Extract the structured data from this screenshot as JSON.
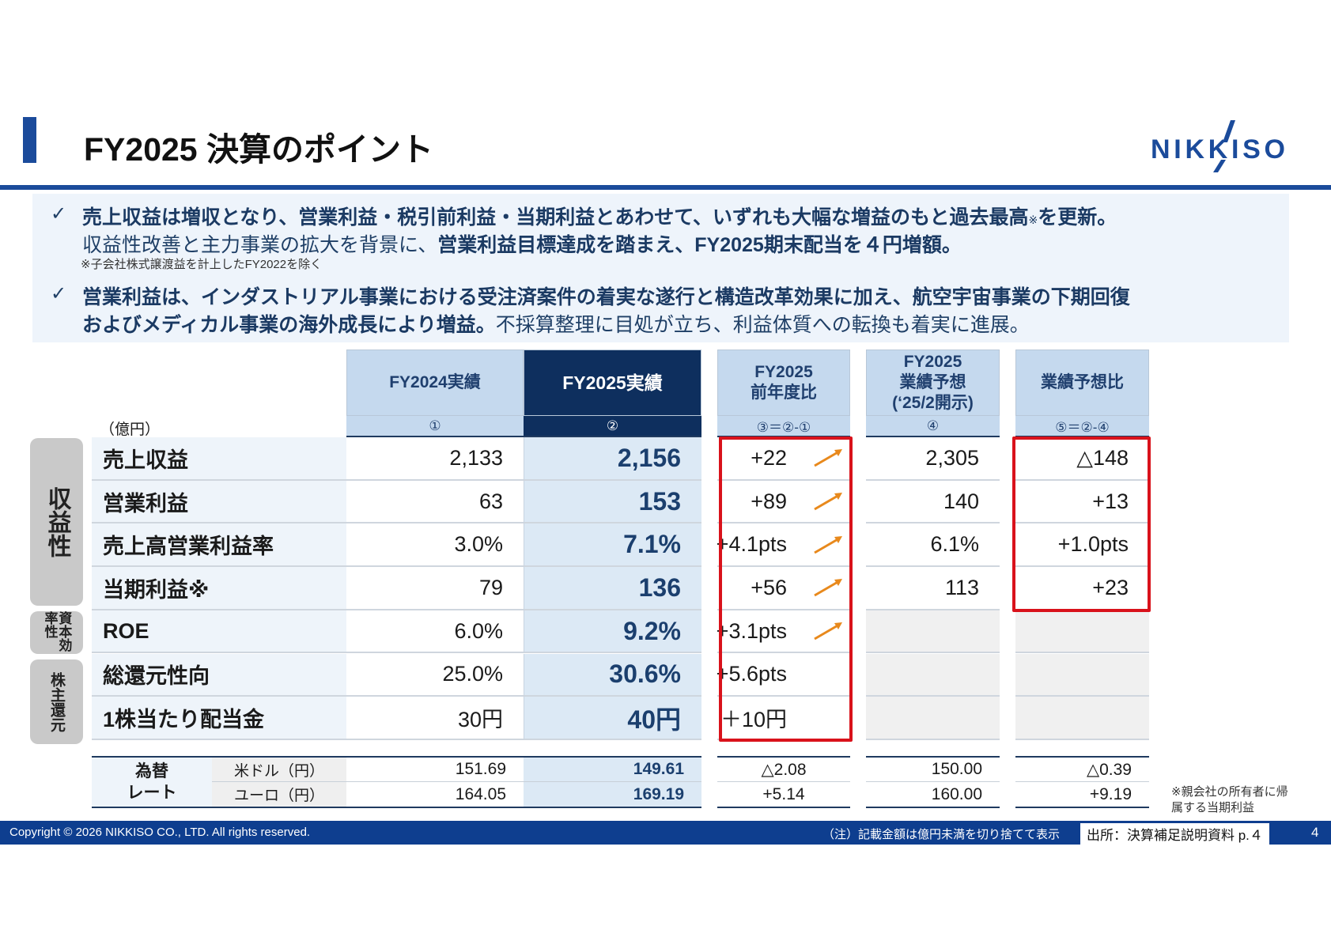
{
  "header": {
    "title": "FY2025 決算のポイント",
    "logo_text": "NIKKISO"
  },
  "summary": {
    "bullet1_line1": "売上収益は増収となり、営業利益・税引前利益・当期利益とあわせて、いずれも大幅な増益のもと過去最高",
    "bullet1_mark": "※",
    "bullet1_line1_end": "を更新。",
    "bullet1_line2_a": "収益性改善と主力事業の拡大を背景に、",
    "bullet1_line2_b": "営業利益目標達成を踏まえ、FY2025期末配当を４円増額。",
    "bullet1_note": "※子会社株式譲渡益を計上したFY2022を除く",
    "bullet2_line1": "営業利益は、インダストリアル事業における受注済案件の着実な遂行と構造改革効果に加え、航空宇宙事業の下期回復",
    "bullet2_line2_a": "およびメディカル事業の海外成長により増益。",
    "bullet2_line2_b": "不採算整理に目処が立ち、利益体質への転換も着実に進展。",
    "check": "✓"
  },
  "table": {
    "unit": "（億円）",
    "columns": [
      {
        "label": "FY2024実績",
        "sub": "①"
      },
      {
        "label": "FY2025実績",
        "sub": "②"
      },
      {
        "label": "FY2025\n前年度比",
        "sub": "③＝②-①"
      },
      {
        "label": "FY2025\n業績予想\n(‘25/2開示)",
        "sub": "④"
      },
      {
        "label": "業績予想比",
        "sub": "⑤＝②-④"
      }
    ],
    "groups": [
      {
        "label": "収益性"
      },
      {
        "label": "資本効率性"
      },
      {
        "label": "株主還元"
      }
    ],
    "rows": [
      {
        "label": "売上収益",
        "fy24": "2,133",
        "fy25": "2,156",
        "yoy": "+22",
        "up": true,
        "forecast": "2,305",
        "vs_forecast": "△148"
      },
      {
        "label": "営業利益",
        "fy24": "63",
        "fy25": "153",
        "yoy": "+89",
        "up": true,
        "forecast": "140",
        "vs_forecast": "+13"
      },
      {
        "label": "売上高営業利益率",
        "fy24": "3.0%",
        "fy25": "7.1%",
        "yoy": "+4.1pts",
        "up": true,
        "forecast": "6.1%",
        "vs_forecast": "+1.0pts"
      },
      {
        "label": "当期利益※",
        "fy24": "79",
        "fy25": "136",
        "yoy": "+56",
        "up": true,
        "forecast": "113",
        "vs_forecast": "+23"
      },
      {
        "label": "ROE",
        "fy24": "6.0%",
        "fy25": "9.2%",
        "yoy": "+3.1pts",
        "up": true,
        "forecast": "",
        "vs_forecast": ""
      },
      {
        "label": "総還元性向",
        "fy24": "25.0%",
        "fy25": "30.6%",
        "yoy": "+5.6pts",
        "up": false,
        "forecast": "",
        "vs_forecast": ""
      },
      {
        "label": "1株当たり配当金",
        "fy24": "30円",
        "fy25": "40円",
        "yoy": "＋10円",
        "up": false,
        "forecast": "",
        "vs_forecast": ""
      }
    ],
    "fx": {
      "label": "為替\nレート",
      "rows": [
        {
          "currency": "米ドル（円）",
          "fy24": "151.69",
          "fy25": "149.61",
          "yoy": "△2.08",
          "forecast": "150.00",
          "vs_forecast": "△0.39"
        },
        {
          "currency": "ユーロ（円）",
          "fy24": "164.05",
          "fy25": "169.19",
          "yoy": "+5.14",
          "forecast": "160.00",
          "vs_forecast": "+9.19"
        }
      ]
    },
    "footnote": "※親会社の所有者に帰属する当期利益"
  },
  "footer": {
    "copyright": "Copyright © 2026 NIKKISO CO., LTD. All rights reserved.",
    "note": "（注）記載金額は億円未満を切り捨てて表示",
    "source": "出所：決算補足説明資料 p.４",
    "page": "4"
  },
  "colors": {
    "brand_blue": "#1b4b9b",
    "dark_navy": "#0e2f5e",
    "highlight_red": "#d9121b",
    "arrow_orange": "#e8891c"
  }
}
